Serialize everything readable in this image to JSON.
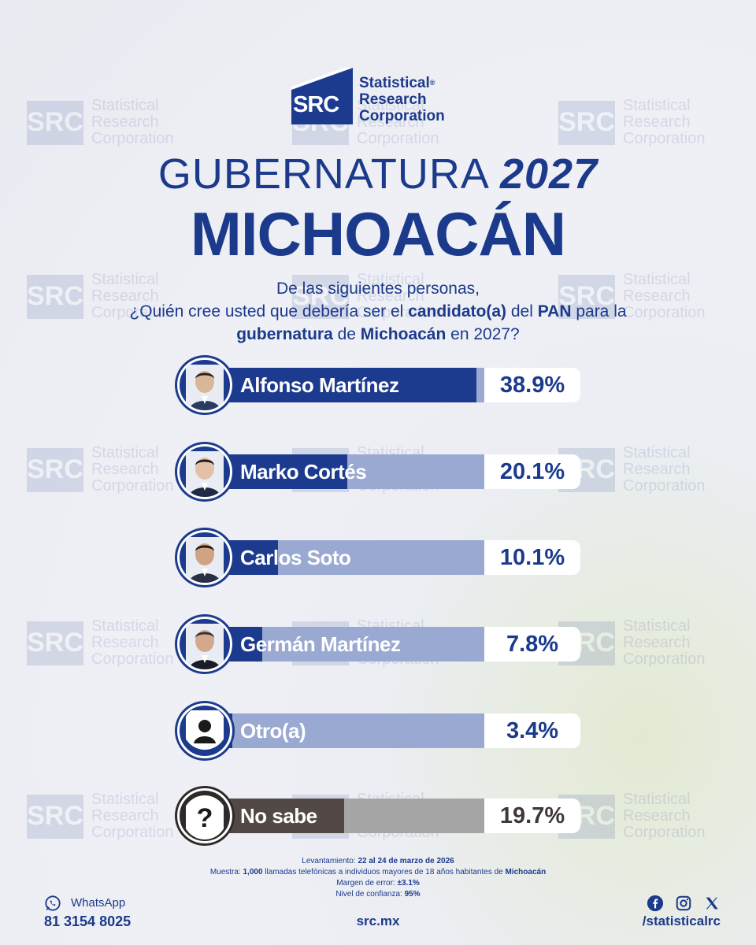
{
  "logo": {
    "abbr": "SRC",
    "line1": "Statistical",
    "reg": "®",
    "line2": "Research",
    "line3": "Corporation"
  },
  "title": {
    "line1_prefix": "GUBERNATURA",
    "line1_year": "2027",
    "line2": "MICHOACÁN"
  },
  "question": {
    "line1": "De las siguientes personas,",
    "p1": "¿Quién cree usted que debería ser el ",
    "b1": "candidato(a)",
    "p2": " del ",
    "b2": "PAN",
    "p3": " para la",
    "b3": "gubernatura",
    "p4": " de ",
    "b4": "Michoacán",
    "p5": " en 2027?"
  },
  "chart_data": {
    "type": "bar",
    "orientation": "horizontal",
    "ylim": [
      0,
      40
    ],
    "categories": [
      "Alfonso Martínez",
      "Marko Cortés",
      "Carlos Soto",
      "Germán Martínez",
      "Otro(a)",
      "No sabe"
    ],
    "values": [
      38.9,
      20.1,
      10.1,
      7.8,
      3.4,
      19.7
    ],
    "value_labels": [
      "38.9%",
      "20.1%",
      "10.1%",
      "7.8%",
      "3.4%",
      "19.7%"
    ],
    "colors": {
      "fill": "#1c3b8e",
      "track": "#9aa9d2",
      "nosabe_fill": "#524946",
      "nosabe_track": "#a5a5a5"
    },
    "icons": [
      "photo-alfonso",
      "photo-marko",
      "photo-carlos",
      "photo-german",
      "person-icon",
      "question-icon"
    ]
  },
  "footnote": {
    "l1_label": "Levantamiento: ",
    "l1_value": "22 al 24 de marzo de 2026",
    "l2_label": "Muestra: ",
    "l2_count": "1,000",
    "l2_text": " llamadas telefónicas a individuos mayores de 18 años habitantes de ",
    "l2_place": "Michoacán",
    "l3_label": "Margen de error: ",
    "l3_value": "±3.1%",
    "l4_label": "Nivel de confianza: ",
    "l4_value": "95%"
  },
  "footer": {
    "whatsapp_label": "WhatsApp",
    "whatsapp_phone": "81 3154 8025",
    "site": "src.mx",
    "social_handle": "/statisticalrc",
    "social_icons": [
      "facebook-icon",
      "instagram-icon",
      "x-icon"
    ]
  },
  "watermark": {
    "abbr": "SRC",
    "line1": "Statistical",
    "line2": "Research",
    "line3": "Corporation"
  }
}
